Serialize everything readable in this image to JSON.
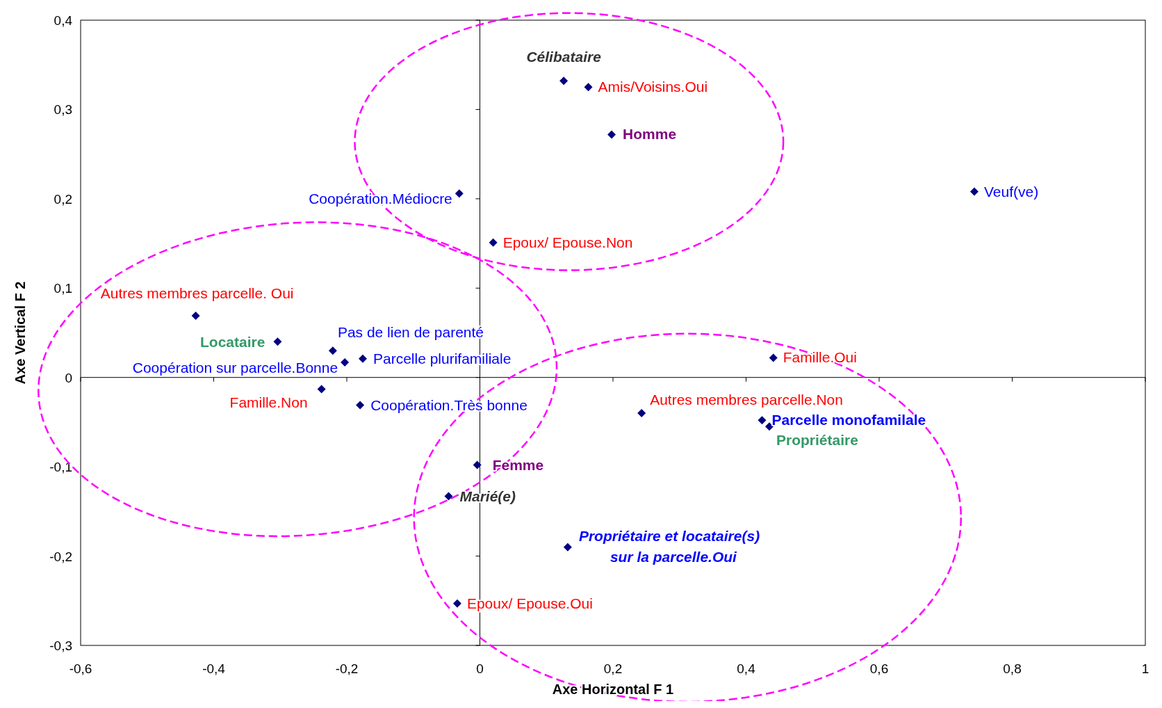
{
  "chart_data": {
    "type": "scatter",
    "xlabel": "Axe Horizontal F 1",
    "ylabel": "Axe Vertical F 2",
    "xlim": [
      -0.6,
      1
    ],
    "xticks": [
      {
        "value": -0.6,
        "label": "-0,6"
      },
      {
        "value": -0.4,
        "label": "-0,4"
      },
      {
        "value": -0.2,
        "label": "-0,2"
      },
      {
        "value": 0,
        "label": "0"
      },
      {
        "value": 0.2,
        "label": "0,2"
      },
      {
        "value": 0.4,
        "label": "0,4"
      },
      {
        "value": 0.6,
        "label": "0,6"
      },
      {
        "value": 0.8,
        "label": "0,8"
      },
      {
        "value": 1,
        "label": "1"
      }
    ],
    "ylim": [
      -0.3,
      0.4
    ],
    "yticks": [
      {
        "value": -0.3,
        "label": "-0,3"
      },
      {
        "value": -0.2,
        "label": "-0,2"
      },
      {
        "value": -0.1,
        "label": "-0,1"
      },
      {
        "value": 0,
        "label": "0"
      },
      {
        "value": 0.1,
        "label": "0,1"
      },
      {
        "value": 0.2,
        "label": "0,2"
      },
      {
        "value": 0.3,
        "label": "0,3"
      },
      {
        "value": 0.4,
        "label": "0,4"
      }
    ],
    "marker": "diamond",
    "series": [
      {
        "color": "#000080",
        "x": [
          0.126,
          0.163,
          0.198,
          0.743,
          -0.031,
          0.02,
          -0.427,
          -0.304,
          -0.221,
          -0.203,
          -0.176,
          0.441,
          -0.238,
          -0.18,
          0.243,
          0.424,
          0.435,
          -0.004,
          -0.047,
          0.132,
          -0.034
        ],
        "values": [
          0.332,
          0.325,
          0.272,
          0.208,
          0.206,
          0.151,
          0.069,
          0.04,
          0.03,
          0.017,
          0.021,
          0.022,
          -0.013,
          -0.031,
          -0.04,
          -0.048,
          -0.055,
          -0.098,
          -0.133,
          -0.19,
          -0.253
        ]
      }
    ],
    "annotations": [
      {
        "text": "Célibataire",
        "x": 0.126,
        "y": 0.332
      },
      {
        "text": "Amis/Voisins.Oui",
        "x": 0.163,
        "y": 0.325
      },
      {
        "text": "Homme",
        "x": 0.198,
        "y": 0.272
      },
      {
        "text": "Veuf(ve)",
        "x": 0.743,
        "y": 0.208
      },
      {
        "text": "Coopération.Médiocre",
        "x": -0.031,
        "y": 0.206
      },
      {
        "text": "Epoux/ Epouse.Non",
        "x": 0.02,
        "y": 0.151
      },
      {
        "text": "Autres membres parcelle. Oui",
        "x": -0.427,
        "y": 0.069
      },
      {
        "text": "Locataire",
        "x": -0.304,
        "y": 0.04
      },
      {
        "text": "Pas de lien de parenté",
        "x": -0.221,
        "y": 0.03
      },
      {
        "text": "Coopération sur parcelle.Bonne",
        "x": -0.203,
        "y": 0.017
      },
      {
        "text": "Parcelle plurifamiliale",
        "x": -0.176,
        "y": 0.021
      },
      {
        "text": "Famille.Oui",
        "x": 0.441,
        "y": 0.022
      },
      {
        "text": "Famille.Non",
        "x": -0.238,
        "y": -0.013
      },
      {
        "text": "Coopération.Très bonne",
        "x": -0.18,
        "y": -0.031
      },
      {
        "text": "Autres membres parcelle.Non",
        "x": 0.243,
        "y": -0.04
      },
      {
        "text": "Parcelle monofamilale",
        "x": 0.424,
        "y": -0.048
      },
      {
        "text": "Propriétaire",
        "x": 0.435,
        "y": -0.055
      },
      {
        "text": "Femme",
        "x": -0.004,
        "y": -0.098
      },
      {
        "text": "Marié(e)",
        "x": -0.047,
        "y": -0.133
      },
      {
        "text": "Propriétaire et locataire(s)\nsur la parcelle.Oui",
        "x": 0.132,
        "y": -0.19
      },
      {
        "text": "Epoux/ Epouse.Oui",
        "x": -0.034,
        "y": -0.253
      }
    ]
  }
}
